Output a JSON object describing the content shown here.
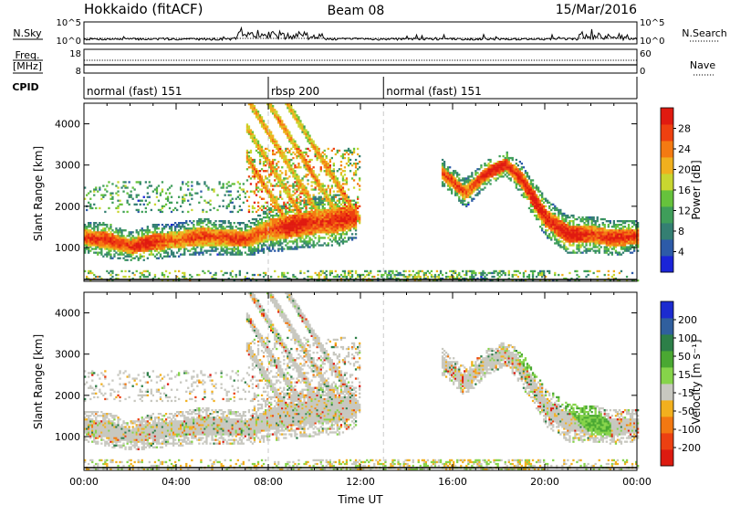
{
  "header": {
    "station": "Hokkaido (fitACF)",
    "beam": "Beam 08",
    "date": "15/Mar/2016"
  },
  "top_panels": {
    "nsky_label": "N.Sky",
    "nsearch_label": "N.Search",
    "noise_ticks": [
      "10^5",
      "10^0"
    ],
    "freq_label": "Freq.",
    "freq_unit": "[MHz]",
    "freq_ticks": [
      "18",
      "8"
    ],
    "nave_label": "Nave",
    "nave_ticks": [
      "60",
      "0"
    ],
    "cpid_label": "CPID",
    "cpid_segments": [
      {
        "label": "normal (fast) 151",
        "start_hour": 0,
        "end_hour": 8
      },
      {
        "label": "rbsp 200",
        "start_hour": 8,
        "end_hour": 13
      },
      {
        "label": "normal (fast) 151",
        "start_hour": 13,
        "end_hour": 24
      }
    ]
  },
  "chart_data": [
    {
      "type": "heatmap",
      "quantity": "power",
      "xlabel": "",
      "ylabel": "Slant Range [km]",
      "xlim": [
        0,
        24
      ],
      "ylim": [
        180,
        4500
      ],
      "yticks": [
        "1000",
        "2000",
        "3000",
        "4000"
      ],
      "colorbar": {
        "label": "Power [dB]",
        "ticks": [
          "4",
          "8",
          "12",
          "16",
          "20",
          "24",
          "28"
        ],
        "colors": [
          "#1a24d8",
          "#2d5ba8",
          "#347f72",
          "#3f9e5a",
          "#66c23c",
          "#c8d630",
          "#f0b01e",
          "#f47a12",
          "#ee4010",
          "#e01a10"
        ]
      },
      "bands": [
        {
          "name": "main",
          "hours": [
            0,
            1,
            2,
            3,
            4,
            5,
            6,
            7,
            8,
            9,
            10,
            11,
            11.8
          ],
          "center_km": [
            1230,
            1150,
            1000,
            1120,
            1170,
            1240,
            1230,
            1180,
            1400,
            1500,
            1600,
            1650,
            1700
          ],
          "half_width_km": [
            180,
            200,
            170,
            200,
            200,
            210,
            200,
            190,
            260,
            270,
            290,
            300,
            230
          ],
          "level": 0.9
        },
        {
          "name": "main-evening",
          "hours": [
            15.5,
            16.5,
            17.5,
            18.3,
            19,
            20,
            21,
            22,
            23,
            24
          ],
          "center_km": [
            2800,
            2300,
            2800,
            3000,
            2600,
            1700,
            1300,
            1300,
            1200,
            1250
          ],
          "half_width_km": [
            150,
            170,
            150,
            140,
            200,
            220,
            220,
            210,
            200,
            180
          ],
          "level": 0.92
        }
      ]
    },
    {
      "type": "heatmap",
      "quantity": "velocity",
      "xlabel": "Time UT",
      "ylabel": "Slant Range [km]",
      "xlim": [
        0,
        24
      ],
      "ylim": [
        180,
        4500
      ],
      "xticks": [
        "00:00",
        "04:00",
        "08:00",
        "12:00",
        "16:00",
        "20:00",
        "00:00"
      ],
      "yticks": [
        "1000",
        "2000",
        "3000",
        "4000"
      ],
      "colorbar": {
        "label": "Velocity [m s⁻¹]",
        "ticks": [
          "200",
          "100",
          "50",
          "15",
          "-15",
          "-50",
          "-100",
          "-200"
        ],
        "colors": [
          "#1c2bd0",
          "#305f9e",
          "#2d7f48",
          "#4aa832",
          "#86d44a",
          "#c8c8c0",
          "#f2b01e",
          "#f27812",
          "#ec4012",
          "#dd1a10"
        ]
      }
    }
  ]
}
